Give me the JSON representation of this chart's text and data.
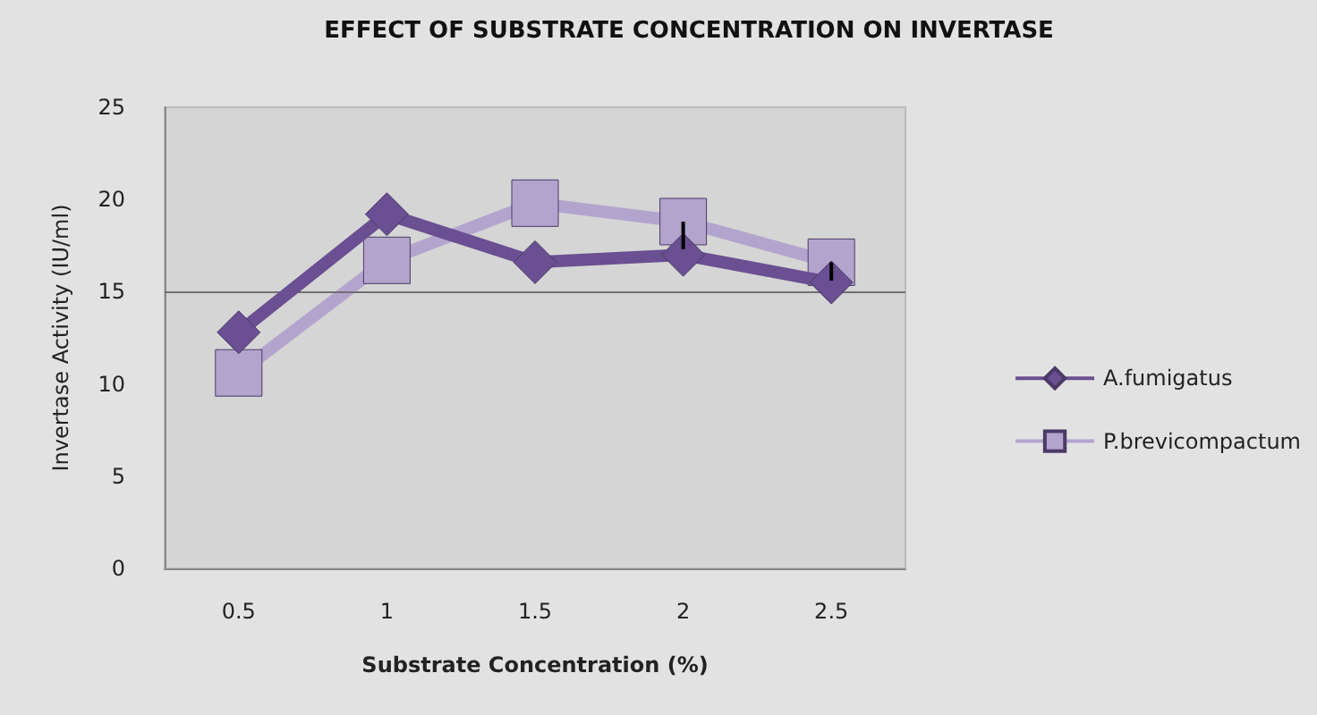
{
  "chart_data": {
    "type": "line",
    "title": "EFFECT OF SUBSTRATE CONCENTRATION ON INVERTASE",
    "xlabel": "Substrate Concentration (%)",
    "ylabel": "Invertase Activity (IU/ml)",
    "categories": [
      "0.5",
      "1",
      "1.5",
      "2",
      "2.5"
    ],
    "series": [
      {
        "name": "A.fumigatus",
        "color": "#6a4f92",
        "marker": "diamond",
        "values": [
          12.8,
          19.2,
          16.6,
          17.0,
          15.5
        ]
      },
      {
        "name": "P.brevicompactum",
        "color": "#b3a4cd",
        "marker": "square",
        "values": [
          10.6,
          16.7,
          19.8,
          18.8,
          16.6
        ],
        "errors": [
          null,
          null,
          null,
          [
            17.3,
            18.8
          ],
          [
            15.6,
            16.6
          ]
        ]
      }
    ],
    "ylim": [
      0,
      25
    ],
    "yticks": [
      0,
      5,
      10,
      15,
      20,
      25
    ],
    "ref_lines": [
      {
        "axis": "y",
        "value": 15,
        "color": "#707070"
      }
    ],
    "legend": "right",
    "line_style": "solid"
  }
}
